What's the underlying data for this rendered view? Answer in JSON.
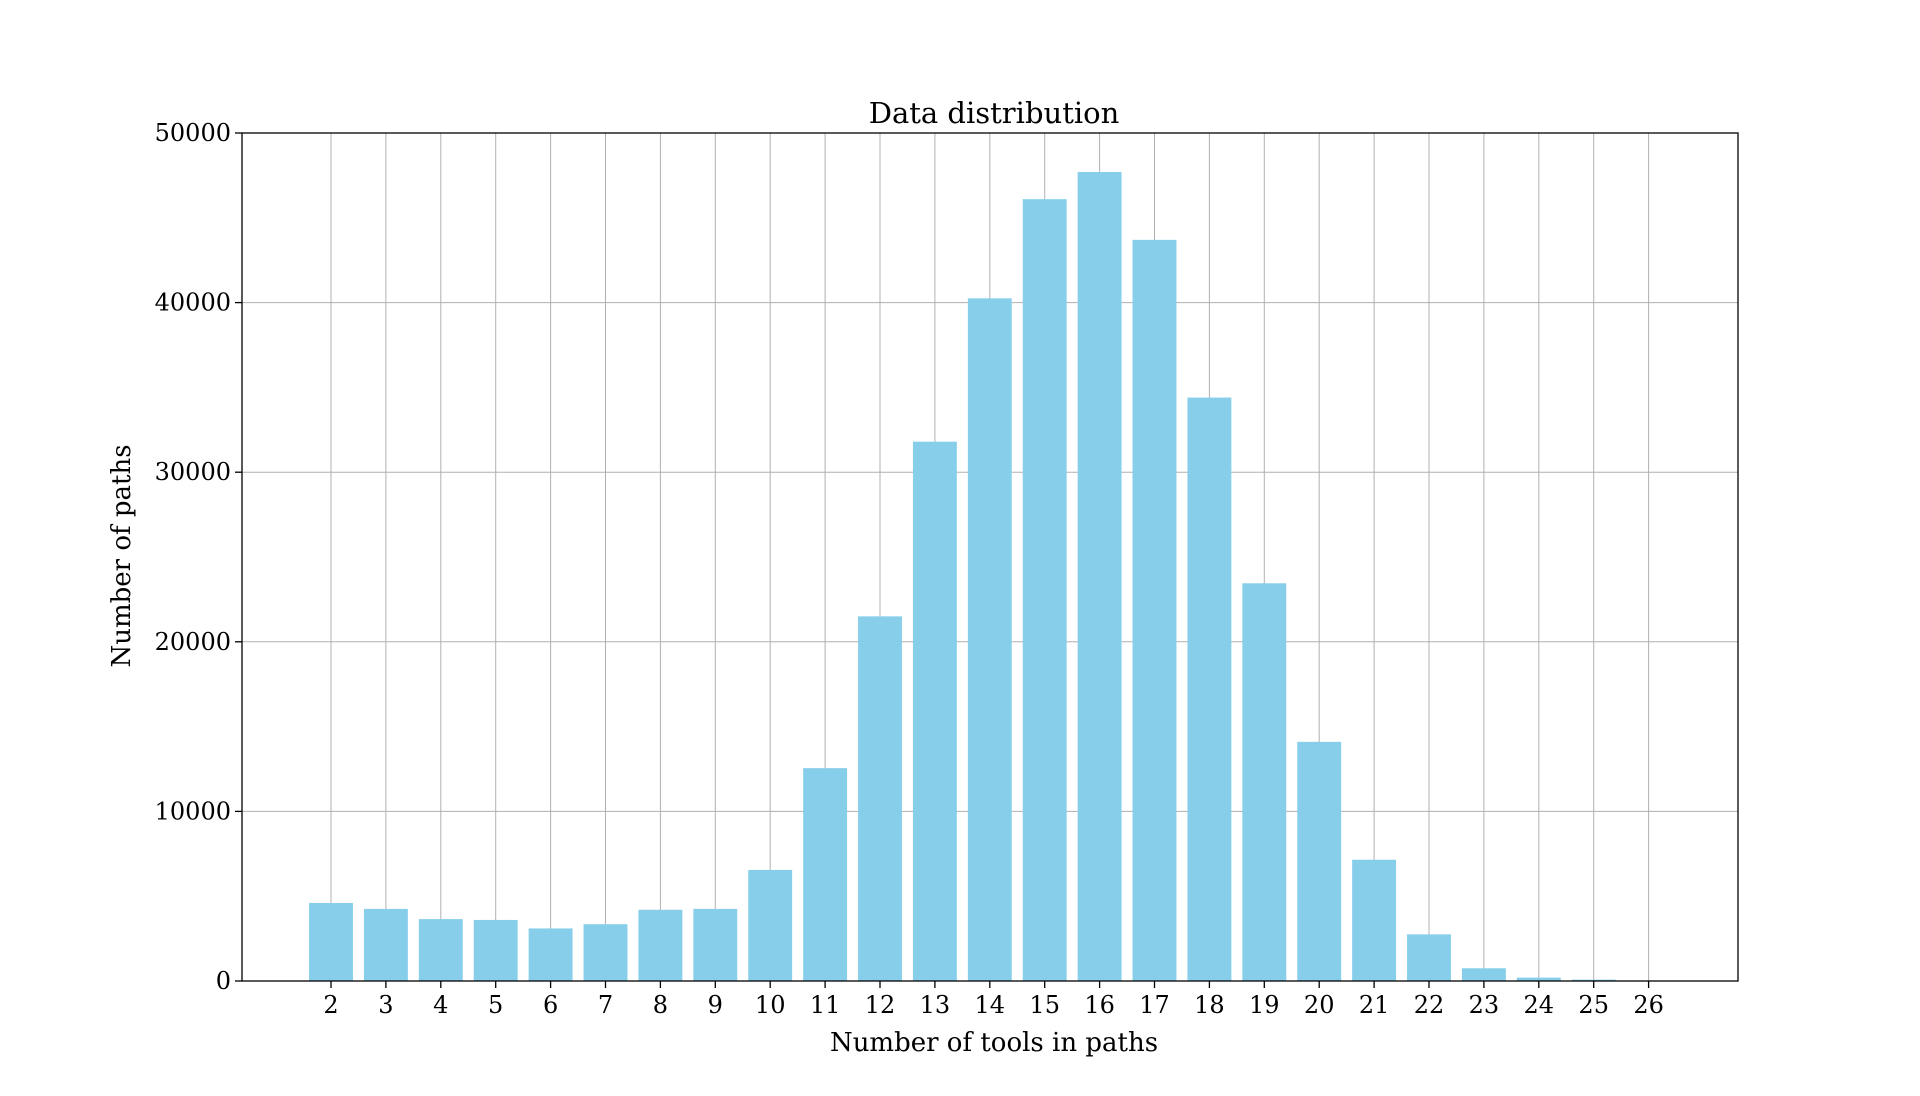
{
  "chart_data": {
    "type": "bar",
    "title": "Data distribution",
    "xlabel": "Number of tools in paths",
    "ylabel": "Number of paths",
    "categories": [
      "2",
      "3",
      "4",
      "5",
      "6",
      "7",
      "8",
      "9",
      "10",
      "11",
      "12",
      "13",
      "14",
      "15",
      "16",
      "17",
      "18",
      "19",
      "20",
      "21",
      "22",
      "23",
      "24",
      "25",
      "26"
    ],
    "values": [
      4600,
      4250,
      3650,
      3600,
      3100,
      3350,
      4200,
      4250,
      6550,
      12550,
      21500,
      31800,
      40250,
      46100,
      47700,
      43700,
      34400,
      23450,
      14100,
      7150,
      2750,
      750,
      200,
      80,
      20
    ],
    "ylim": [
      0,
      50000
    ],
    "yticks": [
      0,
      10000,
      20000,
      30000,
      40000,
      50000
    ],
    "bar_color": "#87ceeb",
    "grid": true
  }
}
